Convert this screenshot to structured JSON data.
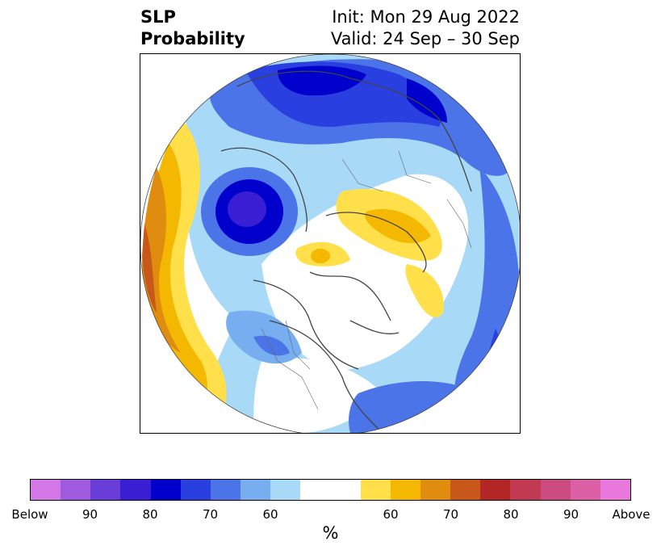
{
  "header": {
    "title_line1": "SLP",
    "title_line2": "Probability",
    "init": "Init: Mon 29 Aug 2022",
    "valid": "Valid: 24 Sep – 30 Sep"
  },
  "colorbar": {
    "segments": [
      "#d478e8",
      "#a05ae0",
      "#6a3cd8",
      "#3a1ed4",
      "#0000cc",
      "#2a3fe0",
      "#4a74e8",
      "#76aef0",
      "#a8daf8",
      "#ffffff",
      "#ffe04a",
      "#f4b800",
      "#e08c0e",
      "#c8581a",
      "#b42626",
      "#c23a52",
      "#cc4c80",
      "#dc60a6",
      "#e878dc"
    ],
    "ticks": [
      {
        "label": "Below"
      },
      {
        "label": "90"
      },
      {
        "label": "80"
      },
      {
        "label": "70"
      },
      {
        "label": "60"
      },
      {
        "label": "60"
      },
      {
        "label": "70"
      },
      {
        "label": "80"
      },
      {
        "label": "90"
      },
      {
        "label": "Above"
      }
    ],
    "unit_label": "%"
  }
}
